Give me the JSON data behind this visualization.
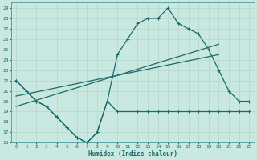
{
  "xlabel": "Humidex (Indice chaleur)",
  "xlim": [
    -0.5,
    23.5
  ],
  "ylim": [
    16,
    29.5
  ],
  "yticks": [
    16,
    17,
    18,
    19,
    20,
    21,
    22,
    23,
    24,
    25,
    26,
    27,
    28,
    29
  ],
  "xticks": [
    0,
    1,
    2,
    3,
    4,
    5,
    6,
    7,
    8,
    9,
    10,
    11,
    12,
    13,
    14,
    15,
    16,
    17,
    18,
    19,
    20,
    21,
    22,
    23
  ],
  "bg_color": "#c8e8e0",
  "line_color": "#1a6b6b",
  "grid_color": "#b8d8d0",
  "line1_x": [
    0,
    1,
    2,
    3,
    4,
    5,
    6,
    7,
    8,
    9,
    10,
    11,
    12,
    13,
    14,
    15,
    16,
    17,
    18,
    19,
    20,
    21,
    22,
    23
  ],
  "line1_y": [
    22,
    21,
    20,
    19.5,
    18.5,
    17.5,
    16.5,
    16,
    17,
    20,
    24.5,
    26,
    27.5,
    28,
    28,
    29,
    27.5,
    27,
    26.5,
    25,
    23,
    21,
    20,
    20
  ],
  "line2_x": [
    0,
    1,
    2,
    3,
    4,
    5,
    6,
    7,
    8,
    9,
    10,
    11,
    12,
    13,
    14,
    15,
    16,
    17,
    18,
    19,
    20,
    21,
    22,
    23
  ],
  "line2_y": [
    22,
    21,
    20,
    19.5,
    18.5,
    17.5,
    16.5,
    16,
    17,
    20,
    19,
    19,
    19,
    19,
    19,
    19,
    19,
    19,
    19,
    19,
    19,
    19,
    19,
    19
  ],
  "line3_x": [
    0,
    20
  ],
  "line3_y": [
    19.5,
    25.5
  ],
  "line4_x": [
    0,
    20
  ],
  "line4_y": [
    20.5,
    24.5
  ]
}
